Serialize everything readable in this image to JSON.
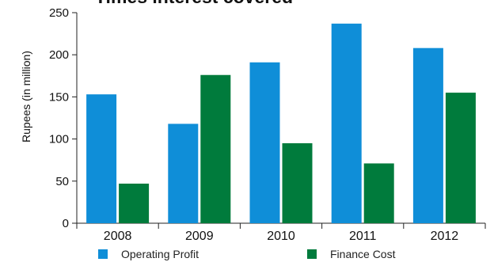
{
  "chart_data": {
    "type": "bar",
    "title": "Times interest covered",
    "xlabel": "",
    "ylabel": "Rupees (in million)",
    "categories": [
      "2008",
      "2009",
      "2010",
      "2011",
      "2012"
    ],
    "series": [
      {
        "name": "Operating Profit",
        "values": [
          153,
          118,
          191,
          237,
          208
        ],
        "color": "#0f8ed8"
      },
      {
        "name": "Finance Cost",
        "values": [
          47,
          176,
          95,
          71,
          155
        ],
        "color": "#007b3c"
      }
    ],
    "ylim": [
      0,
      250
    ],
    "yticks": [
      0,
      50,
      100,
      150,
      200,
      250
    ],
    "grid": false,
    "legend_position": "bottom"
  }
}
